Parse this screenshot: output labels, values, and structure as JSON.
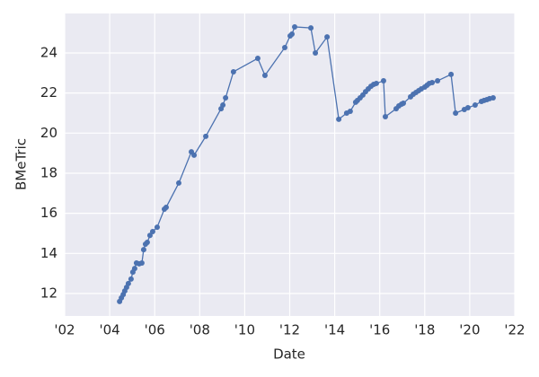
{
  "chart_data": {
    "type": "line",
    "xlabel": "Date",
    "ylabel": "BMeTric",
    "x": [
      2004.44,
      2004.52,
      2004.6,
      2004.67,
      2004.75,
      2004.83,
      2004.95,
      2005.03,
      2005.11,
      2005.19,
      2005.31,
      2005.43,
      2005.51,
      2005.59,
      2005.67,
      2005.79,
      2005.91,
      2006.11,
      2006.43,
      2006.51,
      2007.07,
      2007.63,
      2007.75,
      2008.27,
      2008.95,
      2009.03,
      2009.15,
      2009.5,
      2010.58,
      2010.9,
      2011.78,
      2012.02,
      2012.1,
      2012.22,
      2012.94,
      2013.14,
      2013.66,
      2014.18,
      2014.53,
      2014.69,
      2014.93,
      2015.01,
      2015.13,
      2015.25,
      2015.37,
      2015.49,
      2015.61,
      2015.73,
      2015.85,
      2016.17,
      2016.25,
      2016.73,
      2016.85,
      2016.97,
      2017.05,
      2017.37,
      2017.49,
      2017.61,
      2017.73,
      2017.85,
      2018.0,
      2018.1,
      2018.2,
      2018.33,
      2018.57,
      2019.17,
      2019.37,
      2019.76,
      2019.92,
      2020.24,
      2020.52,
      2020.64,
      2020.76,
      2020.88,
      2021.04
    ],
    "values": [
      11.6,
      11.78,
      11.95,
      12.13,
      12.31,
      12.5,
      12.72,
      13.07,
      13.25,
      13.52,
      13.48,
      13.52,
      14.19,
      14.46,
      14.55,
      14.9,
      15.09,
      15.31,
      16.21,
      16.3,
      17.51,
      19.07,
      18.9,
      19.84,
      21.22,
      21.4,
      21.76,
      23.06,
      23.73,
      22.88,
      24.27,
      24.85,
      24.94,
      25.3,
      25.25,
      24.0,
      24.8,
      20.69,
      21.0,
      21.09,
      21.54,
      21.63,
      21.76,
      21.9,
      22.07,
      22.21,
      22.34,
      22.43,
      22.48,
      22.61,
      20.82,
      21.22,
      21.36,
      21.45,
      21.49,
      21.81,
      21.94,
      22.03,
      22.12,
      22.21,
      22.3,
      22.39,
      22.48,
      22.52,
      22.61,
      22.93,
      21.0,
      21.18,
      21.27,
      21.4,
      21.58,
      21.63,
      21.67,
      21.72,
      21.76
    ],
    "color": "#4c72b0",
    "markers": true,
    "grid": true,
    "xlim": [
      2002,
      2022
    ],
    "xticks": [
      {
        "value": 2002,
        "label": "'02"
      },
      {
        "value": 2004,
        "label": "'04"
      },
      {
        "value": 2006,
        "label": "'06"
      },
      {
        "value": 2008,
        "label": "'08"
      },
      {
        "value": 2010,
        "label": "'10"
      },
      {
        "value": 2012,
        "label": "'12"
      },
      {
        "value": 2014,
        "label": "'14"
      },
      {
        "value": 2016,
        "label": "'16"
      },
      {
        "value": 2018,
        "label": "'18"
      },
      {
        "value": 2020,
        "label": "'20"
      },
      {
        "value": 2022,
        "label": "'22"
      }
    ],
    "ylim": [
      10.88,
      25.97
    ],
    "yticks": [
      12,
      14,
      16,
      18,
      20,
      22,
      24
    ]
  }
}
